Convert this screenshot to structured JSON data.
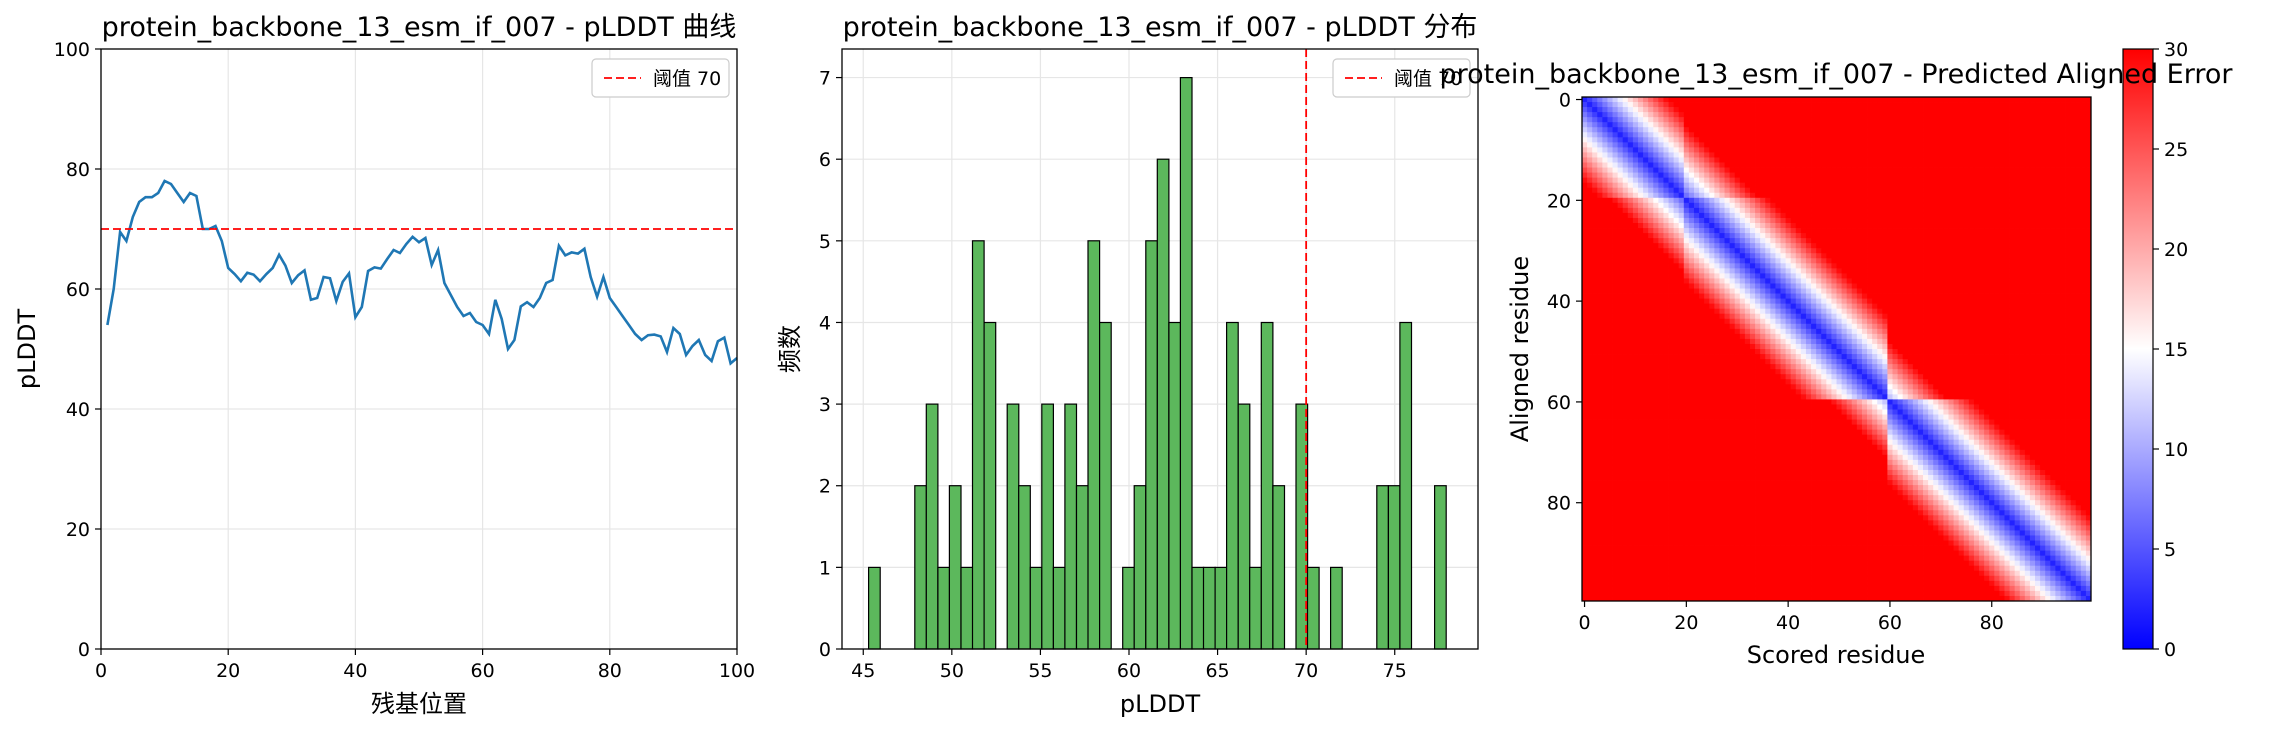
{
  "chart_data": [
    {
      "type": "line",
      "title": "protein_backbone_13_esm_if_007 - pLDDT 曲线",
      "xlabel": "残基位置",
      "ylabel": "pLDDT",
      "xlim": [
        0,
        100
      ],
      "ylim": [
        0,
        100
      ],
      "xticks": [
        "0",
        "20",
        "40",
        "60",
        "80",
        "100"
      ],
      "yticks": [
        "0",
        "20",
        "40",
        "60",
        "80",
        "100"
      ],
      "grid": true,
      "legend": {
        "position": "top-right",
        "entries": [
          "阈值 70"
        ]
      },
      "threshold": 70,
      "series": [
        {
          "x": [
            1,
            2,
            3,
            4,
            5,
            6,
            7,
            8,
            9,
            10,
            11,
            12,
            13,
            14,
            15,
            16,
            17,
            18,
            19,
            20,
            21,
            22,
            23,
            24,
            25,
            26,
            27,
            28,
            29,
            30,
            31,
            32,
            33,
            34,
            35,
            36,
            37,
            38,
            39,
            40,
            41,
            42,
            43,
            44,
            45,
            46,
            47,
            48,
            49,
            50,
            51,
            52,
            53,
            54,
            55,
            56,
            57,
            58,
            59,
            60,
            61,
            62,
            63,
            64,
            65,
            66,
            67,
            68,
            69,
            70,
            71,
            72,
            73,
            74,
            75,
            76,
            77,
            78,
            79,
            80,
            81,
            82,
            83,
            84,
            85,
            86,
            87,
            88,
            89,
            90,
            91,
            92,
            93,
            94,
            95,
            96,
            97,
            98,
            99,
            100
          ],
          "y": [
            54.0,
            60.0,
            69.5,
            68.0,
            72.0,
            74.5,
            75.3,
            75.3,
            76.0,
            78.0,
            77.5,
            76.0,
            74.5,
            76.0,
            75.5,
            70.0,
            70.0,
            70.5,
            68.0,
            63.5,
            62.5,
            61.3,
            62.7,
            62.4,
            61.3,
            62.5,
            63.5,
            65.7,
            63.9,
            61.0,
            62.3,
            63.1,
            58.2,
            58.5,
            62.0,
            61.8,
            58.0,
            61.2,
            62.6,
            55.3,
            57.0,
            63.0,
            63.6,
            63.4,
            65.0,
            66.5,
            66.0,
            67.5,
            68.7,
            67.8,
            68.5,
            64.0,
            66.5,
            61.0,
            59.0,
            57.0,
            55.5,
            56.0,
            54.5,
            54.0,
            52.5,
            58.2,
            55.0,
            50.0,
            51.5,
            57.1,
            57.8,
            57.0,
            58.5,
            61.0,
            61.5,
            67.2,
            65.6,
            66.1,
            65.9,
            66.7,
            62.0,
            58.7,
            62.0,
            58.5,
            57.0,
            55.5,
            54.0,
            52.5,
            51.5,
            52.3,
            52.4,
            52.1,
            49.5,
            53.5,
            52.5,
            49.0,
            50.5,
            51.5,
            49.0,
            48.0,
            51.3,
            51.9,
            47.6,
            48.5
          ]
        }
      ]
    },
    {
      "type": "bar",
      "title": "protein_backbone_13_esm_if_007 - pLDDT 分布",
      "xlabel": "pLDDT",
      "ylabel": "频数",
      "xlim": [
        43.8,
        79.7
      ],
      "ylim": [
        0,
        7.35
      ],
      "xticks": [
        "45",
        "50",
        "55",
        "60",
        "65",
        "70",
        "75"
      ],
      "yticks": [
        "0",
        "1",
        "2",
        "3",
        "4",
        "5",
        "6",
        "7"
      ],
      "grid": true,
      "legend": {
        "position": "top-right",
        "entries": [
          "阈值 70"
        ]
      },
      "threshold": 70,
      "bin_start": 45.3,
      "bin_width": 0.652,
      "values": [
        1,
        0,
        0,
        0,
        2,
        3,
        1,
        2,
        1,
        5,
        4,
        0,
        3,
        2,
        1,
        3,
        1,
        3,
        2,
        5,
        4,
        0,
        1,
        2,
        5,
        6,
        4,
        7,
        1,
        1,
        1,
        4,
        3,
        1,
        4,
        2,
        0,
        3,
        1,
        0,
        1,
        0,
        0,
        0,
        2,
        2,
        4,
        0,
        0,
        2
      ]
    },
    {
      "type": "heatmap",
      "title": "protein_backbone_13_esm_if_007 - Predicted Aligned Error",
      "xlabel": "Scored residue",
      "ylabel": "Aligned residue",
      "xticks": [
        "0",
        "20",
        "40",
        "60",
        "80"
      ],
      "yticks": [
        "0",
        "20",
        "40",
        "60",
        "80"
      ],
      "size": 100,
      "colormap": "bwr",
      "vmin": 0,
      "vmax": 30,
      "colorbar_ticks": [
        "0",
        "5",
        "10",
        "15",
        "20",
        "25",
        "30"
      ],
      "description": "low error band along diagonal, block boundary near residue 60"
    }
  ],
  "colors": {
    "line": "#1f77b4",
    "threshold": "#ff0000",
    "bar_fill": "#5cb85c",
    "bar_edge": "#000000",
    "low": "#0000ff",
    "mid": "#ffffff",
    "high": "#ff0000"
  }
}
